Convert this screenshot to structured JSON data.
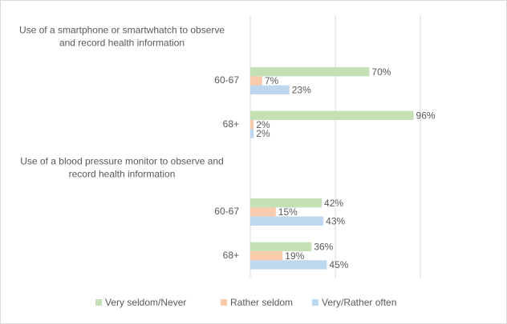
{
  "chart_data": {
    "type": "bar",
    "orientation": "horizontal",
    "categories": [
      "Use of a smartphone or smartwhatch to observe and record health information",
      "60-67",
      "68+",
      "Use of a blood pressure monitor to observe and record health information",
      "60-67",
      "68+"
    ],
    "series": [
      {
        "name": "Very seldom/Never",
        "color": "#c5e0b4",
        "values": [
          null,
          70,
          96,
          null,
          42,
          36
        ],
        "value_labels": [
          null,
          "70%",
          "96%",
          null,
          "42%",
          "36%"
        ]
      },
      {
        "name": "Rather seldom",
        "color": "#f8cbad",
        "values": [
          null,
          7,
          2,
          null,
          15,
          19
        ],
        "value_labels": [
          null,
          "7%",
          "2%",
          null,
          "15%",
          "19%"
        ]
      },
      {
        "name": "Very/Rather often",
        "color": "#bdd7ee",
        "values": [
          null,
          23,
          2,
          null,
          43,
          45
        ],
        "value_labels": [
          null,
          "23%",
          "2%",
          null,
          "43%",
          "45%"
        ]
      }
    ],
    "xlim": [
      0,
      150
    ],
    "xticks": [
      0,
      50,
      100,
      150
    ],
    "grid": true,
    "legend": "bottom"
  }
}
